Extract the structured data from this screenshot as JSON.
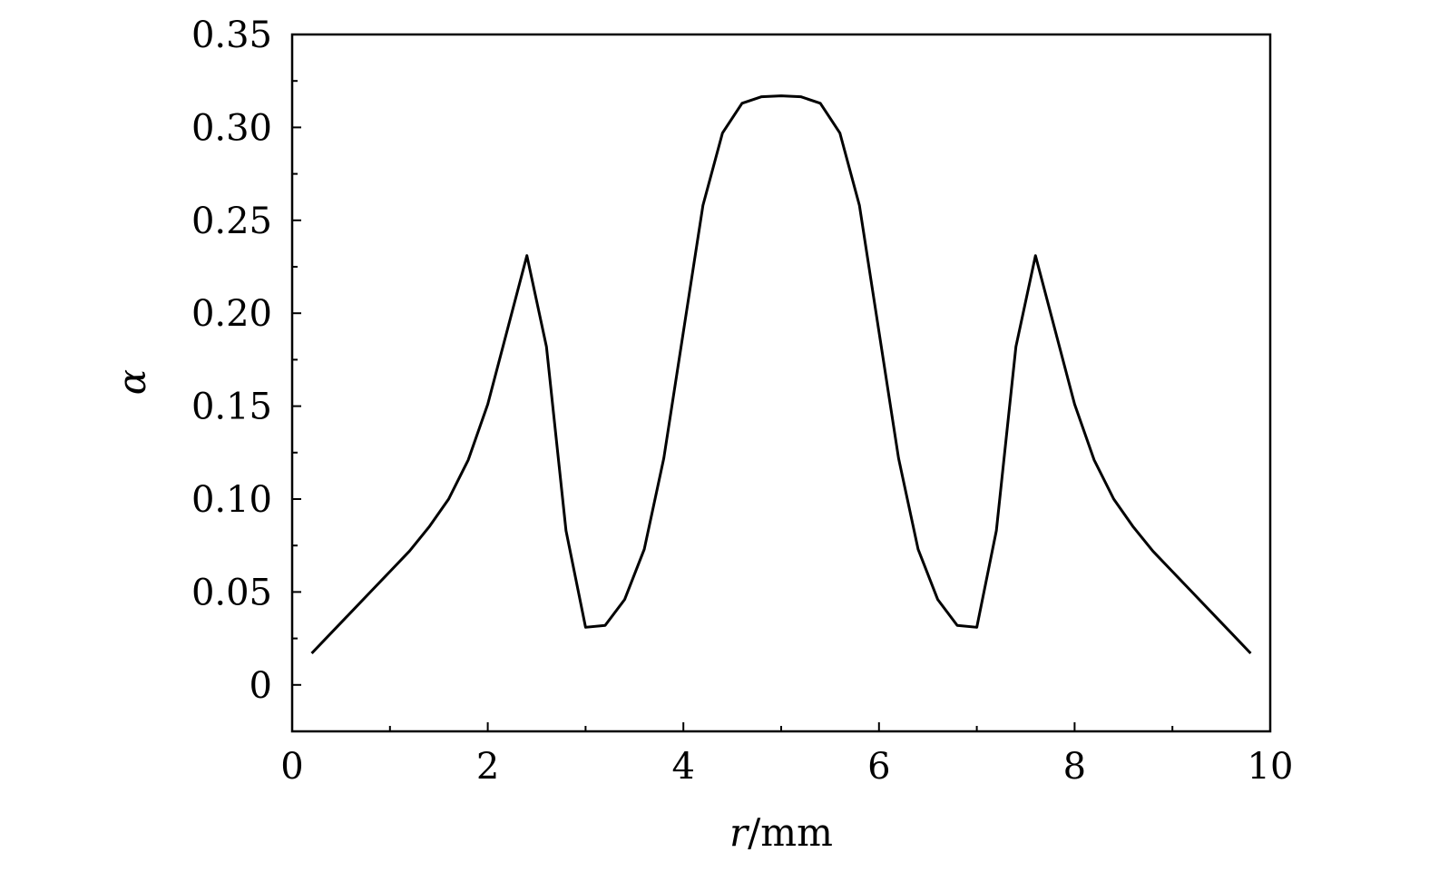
{
  "chart_data": {
    "type": "line",
    "title": "",
    "xlabel_var": "r",
    "xlabel_unit": "/mm",
    "ylabel": "α",
    "xlim": [
      0,
      10
    ],
    "ylim": [
      -0.025,
      0.35
    ],
    "xticks": [
      0,
      2,
      4,
      6,
      8,
      10
    ],
    "xtick_labels": [
      "0",
      "2",
      "4",
      "6",
      "8",
      "10"
    ],
    "yticks": [
      0,
      0.05,
      0.1,
      0.15,
      0.2,
      0.25,
      0.3,
      0.35
    ],
    "ytick_labels": [
      "0",
      "0.05",
      "0.10",
      "0.15",
      "0.20",
      "0.25",
      "0.30",
      "0.35"
    ],
    "grid": false,
    "line_color": "#000000",
    "series": [
      {
        "x": [
          0.2,
          0.4,
          0.6,
          0.8,
          1.0,
          1.2,
          1.4,
          1.6,
          1.8,
          2.0,
          2.2,
          2.4,
          2.6,
          2.8,
          3.0,
          3.2,
          3.4,
          3.6,
          3.8,
          4.0,
          4.2,
          4.4,
          4.6,
          4.8,
          5.0,
          5.2,
          5.4,
          5.6,
          5.8,
          6.0,
          6.2,
          6.4,
          6.6,
          6.8,
          7.0,
          7.2,
          7.4,
          7.6,
          7.8,
          8.0,
          8.2,
          8.4,
          8.6,
          8.8,
          9.0,
          9.2,
          9.4,
          9.6,
          9.8
        ],
        "y": [
          0.017,
          0.028,
          0.039,
          0.05,
          0.061,
          0.072,
          0.085,
          0.1,
          0.121,
          0.151,
          0.191,
          0.231,
          0.182,
          0.083,
          0.031,
          0.032,
          0.046,
          0.073,
          0.122,
          0.19,
          0.258,
          0.297,
          0.313,
          0.3165,
          0.317,
          0.3165,
          0.313,
          0.297,
          0.258,
          0.19,
          0.122,
          0.073,
          0.046,
          0.032,
          0.031,
          0.083,
          0.182,
          0.231,
          0.191,
          0.151,
          0.121,
          0.1,
          0.085,
          0.072,
          0.061,
          0.05,
          0.039,
          0.028,
          0.017
        ]
      }
    ]
  }
}
